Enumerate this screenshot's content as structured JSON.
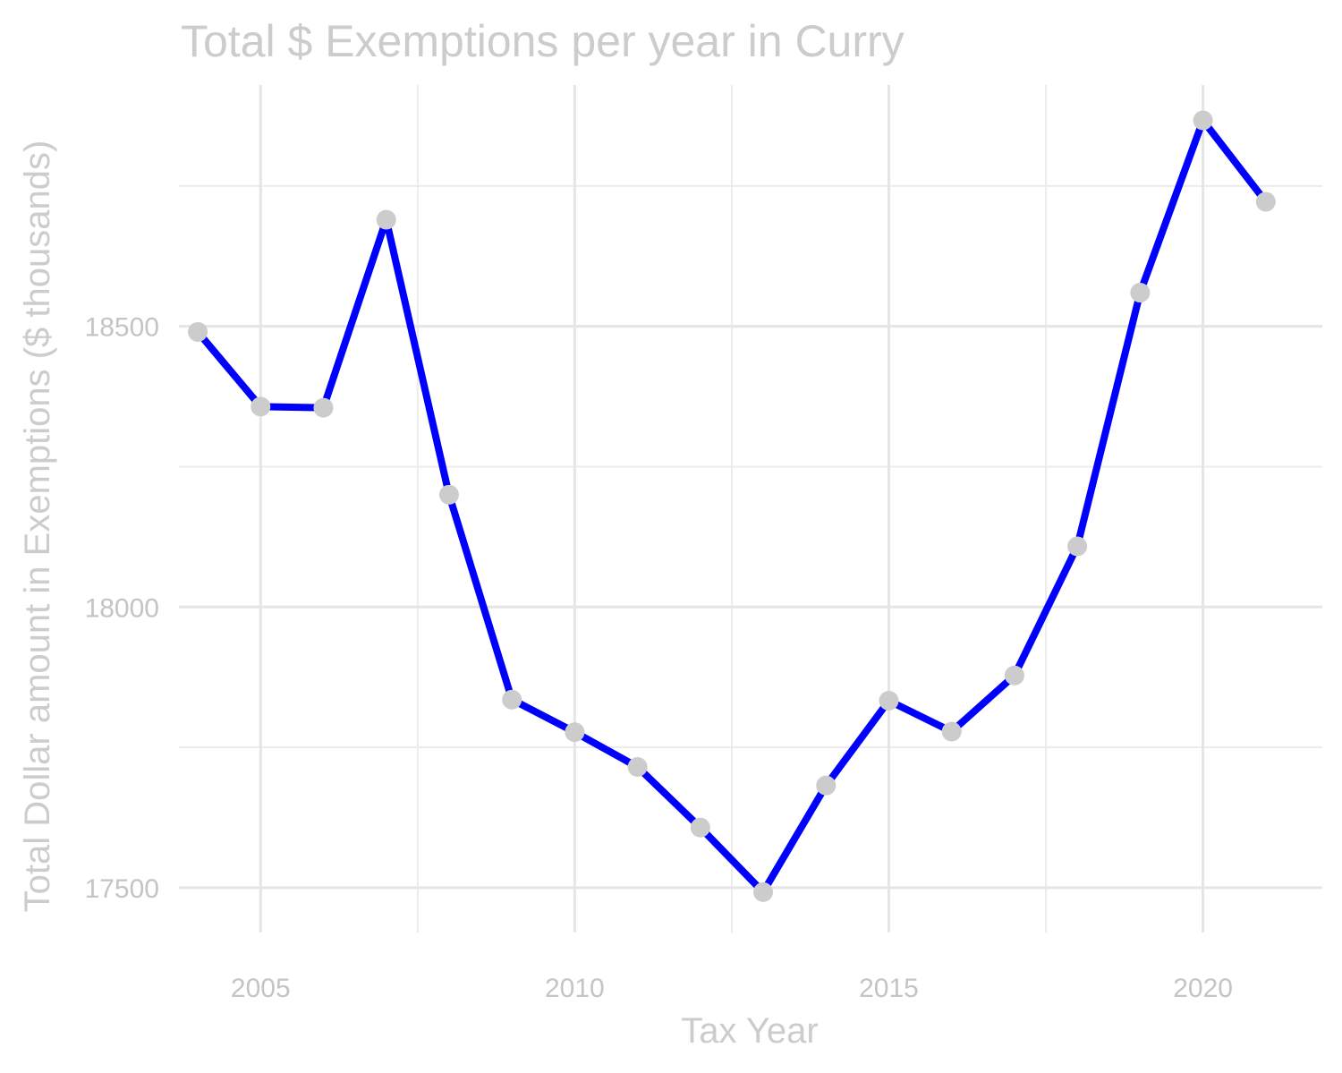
{
  "chart_data": {
    "type": "line",
    "title": "Total $ Exemptions per year in Curry",
    "xlabel": "Tax Year",
    "ylabel": "Total Dollar amount in Exemptions ($ thousands)",
    "xlim": [
      2003.7,
      2021.9
    ],
    "ylim": [
      17420,
      18930
    ],
    "x_ticks": [
      2005,
      2010,
      2015,
      2020
    ],
    "y_ticks": [
      17500,
      18000,
      18500
    ],
    "x_minor": [
      2007.5,
      2012.5,
      2017.5
    ],
    "y_minor": [
      17750,
      18250,
      18750
    ],
    "grid": true,
    "legend": "none",
    "colors": {
      "line": "#0000ff",
      "points": "#cccccc",
      "text": "#cccccc",
      "grid": "#e5e5e5"
    },
    "x": [
      2004,
      2005,
      2006,
      2007,
      2008,
      2009,
      2010,
      2011,
      2012,
      2013,
      2014,
      2015,
      2016,
      2017,
      2018,
      2019,
      2020,
      2021
    ],
    "series": [
      {
        "values": [
          18490,
          18357,
          18355,
          18690,
          18200,
          17835,
          17777,
          17715,
          17607,
          17492,
          17682,
          17833,
          17778,
          17878,
          18108,
          18560,
          18867,
          18722
        ]
      }
    ]
  }
}
